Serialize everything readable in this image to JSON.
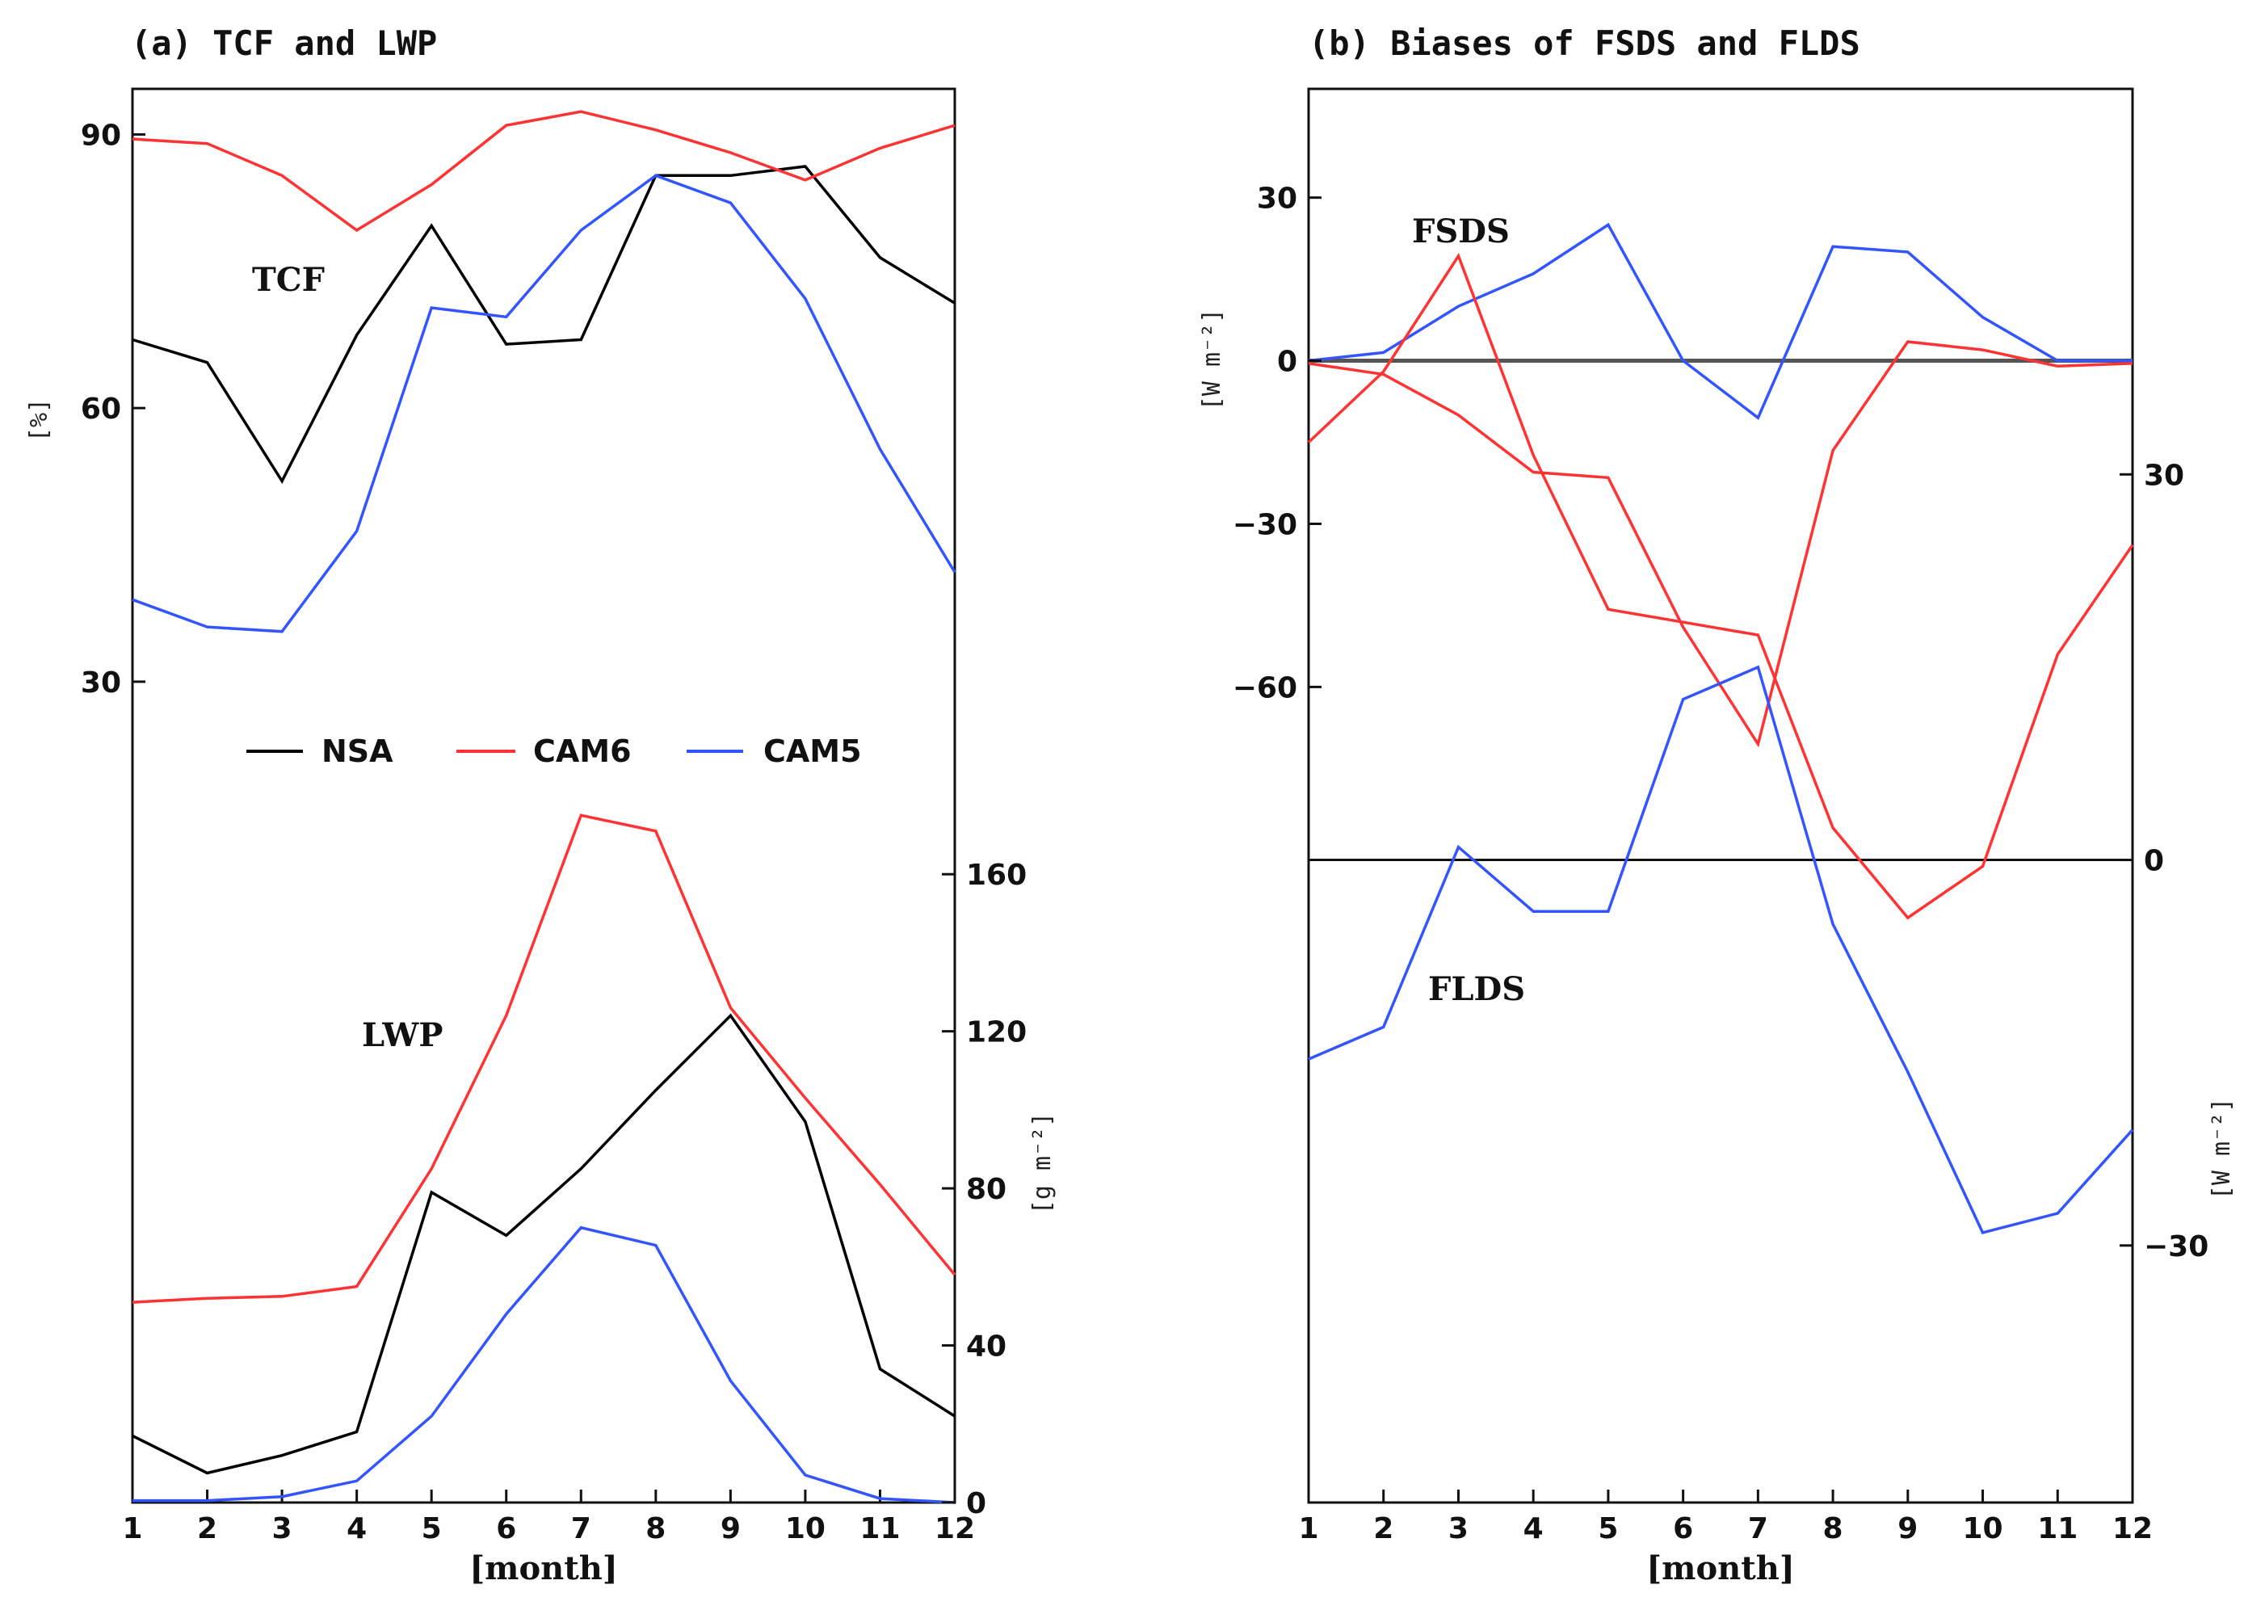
{
  "colors": {
    "NSA": "#000000",
    "CAM6": "#ff3333",
    "CAM5": "#3355ff",
    "axis": "#111111",
    "zero_line": "#555555"
  },
  "legend": [
    {
      "name": "NSA",
      "label": "NSA"
    },
    {
      "name": "CAM6",
      "label": "CAM6"
    },
    {
      "name": "CAM5",
      "label": "CAM5"
    }
  ],
  "chart_data": [
    {
      "type": "line",
      "panel": "a",
      "title": "(a) TCF and LWP",
      "xlabel": "[month]",
      "x": [
        1,
        2,
        3,
        4,
        5,
        6,
        7,
        8,
        9,
        10,
        11,
        12
      ],
      "xticks": [
        "1",
        "2",
        "3",
        "4",
        "5",
        "6",
        "7",
        "8",
        "9",
        "10",
        "11",
        "12"
      ],
      "groups": [
        {
          "label": "TCF",
          "axis": "left",
          "ylabel": "[%]",
          "ylim": [
            -60,
            95
          ],
          "yticks": [
            30,
            60,
            90
          ],
          "series": [
            {
              "name": "NSA",
              "values": [
                67.5,
                65,
                52,
                68,
                80,
                67,
                67.5,
                85.5,
                85.5,
                86.5,
                76.5,
                71.5
              ]
            },
            {
              "name": "CAM6",
              "values": [
                89.5,
                89,
                85.5,
                79.5,
                84.5,
                91,
                92.5,
                90.5,
                88,
                85,
                88.5,
                91
              ]
            },
            {
              "name": "CAM5",
              "values": [
                39,
                36,
                35.5,
                46.5,
                71,
                70,
                79.5,
                85.5,
                82.5,
                72,
                55.5,
                42
              ]
            }
          ]
        },
        {
          "label": "LWP",
          "axis": "right",
          "ylabel": "[g m⁻²]",
          "ylim": [
            0,
            360
          ],
          "yticks": [
            0,
            40,
            80,
            120,
            160
          ],
          "series": [
            {
              "name": "NSA",
              "values": [
                17,
                7.5,
                12,
                18,
                79,
                68,
                85,
                105,
                124,
                97,
                34,
                22
              ]
            },
            {
              "name": "CAM6",
              "values": [
                51,
                52,
                52.5,
                55,
                85,
                124,
                175,
                171,
                126,
                103,
                81,
                58
              ]
            },
            {
              "name": "CAM5",
              "values": [
                0.5,
                0.5,
                1.5,
                5.5,
                22,
                48,
                70,
                65.5,
                31,
                7,
                1,
                0
              ]
            }
          ]
        }
      ]
    },
    {
      "type": "line",
      "panel": "b",
      "title": "(b) Biases of FSDS and FLDS",
      "xlabel": "[month]",
      "x": [
        1,
        2,
        3,
        4,
        5,
        6,
        7,
        8,
        9,
        10,
        11,
        12
      ],
      "xticks": [
        "1",
        "2",
        "3",
        "4",
        "5",
        "6",
        "7",
        "8",
        "9",
        "10",
        "11",
        "12"
      ],
      "groups": [
        {
          "label": "FSDS",
          "axis": "left",
          "ylabel": "[W m⁻²]",
          "ylim": [
            -210,
            50
          ],
          "yticks": [
            -60,
            -30,
            0,
            30
          ],
          "tick_labels": [
            "−60",
            "−30",
            "0",
            "30"
          ],
          "zero_line": true,
          "series": [
            {
              "name": "CAM5",
              "values": [
                0,
                1.5,
                10,
                16,
                25,
                0,
                -10.5,
                21,
                20,
                8,
                0,
                0
              ]
            },
            {
              "name": "CAM6",
              "values": [
                -0.5,
                -2.5,
                -10,
                -20.5,
                -21.5,
                -49,
                -70.5,
                -16.5,
                3.5,
                2,
                -1,
                -0.5
              ]
            }
          ]
        },
        {
          "label": "FLDS",
          "axis": "right",
          "ylabel": "[W m⁻²]",
          "ylim": [
            -50,
            60
          ],
          "yticks": [
            -30,
            0,
            30
          ],
          "tick_labels": [
            "−30",
            "0",
            "30"
          ],
          "zero_line": true,
          "series": [
            {
              "name": "CAM6",
              "values": [
                32.5,
                38,
                47,
                31.5,
                19.5,
                18.5,
                17.5,
                2.5,
                -4.5,
                -0.5,
                16,
                24.5
              ]
            },
            {
              "name": "CAM5",
              "values": [
                -15.5,
                -13,
                1,
                -4,
                -4,
                12.5,
                15,
                -5,
                -16.5,
                -29,
                -27.5,
                -21
              ]
            }
          ]
        }
      ]
    }
  ]
}
